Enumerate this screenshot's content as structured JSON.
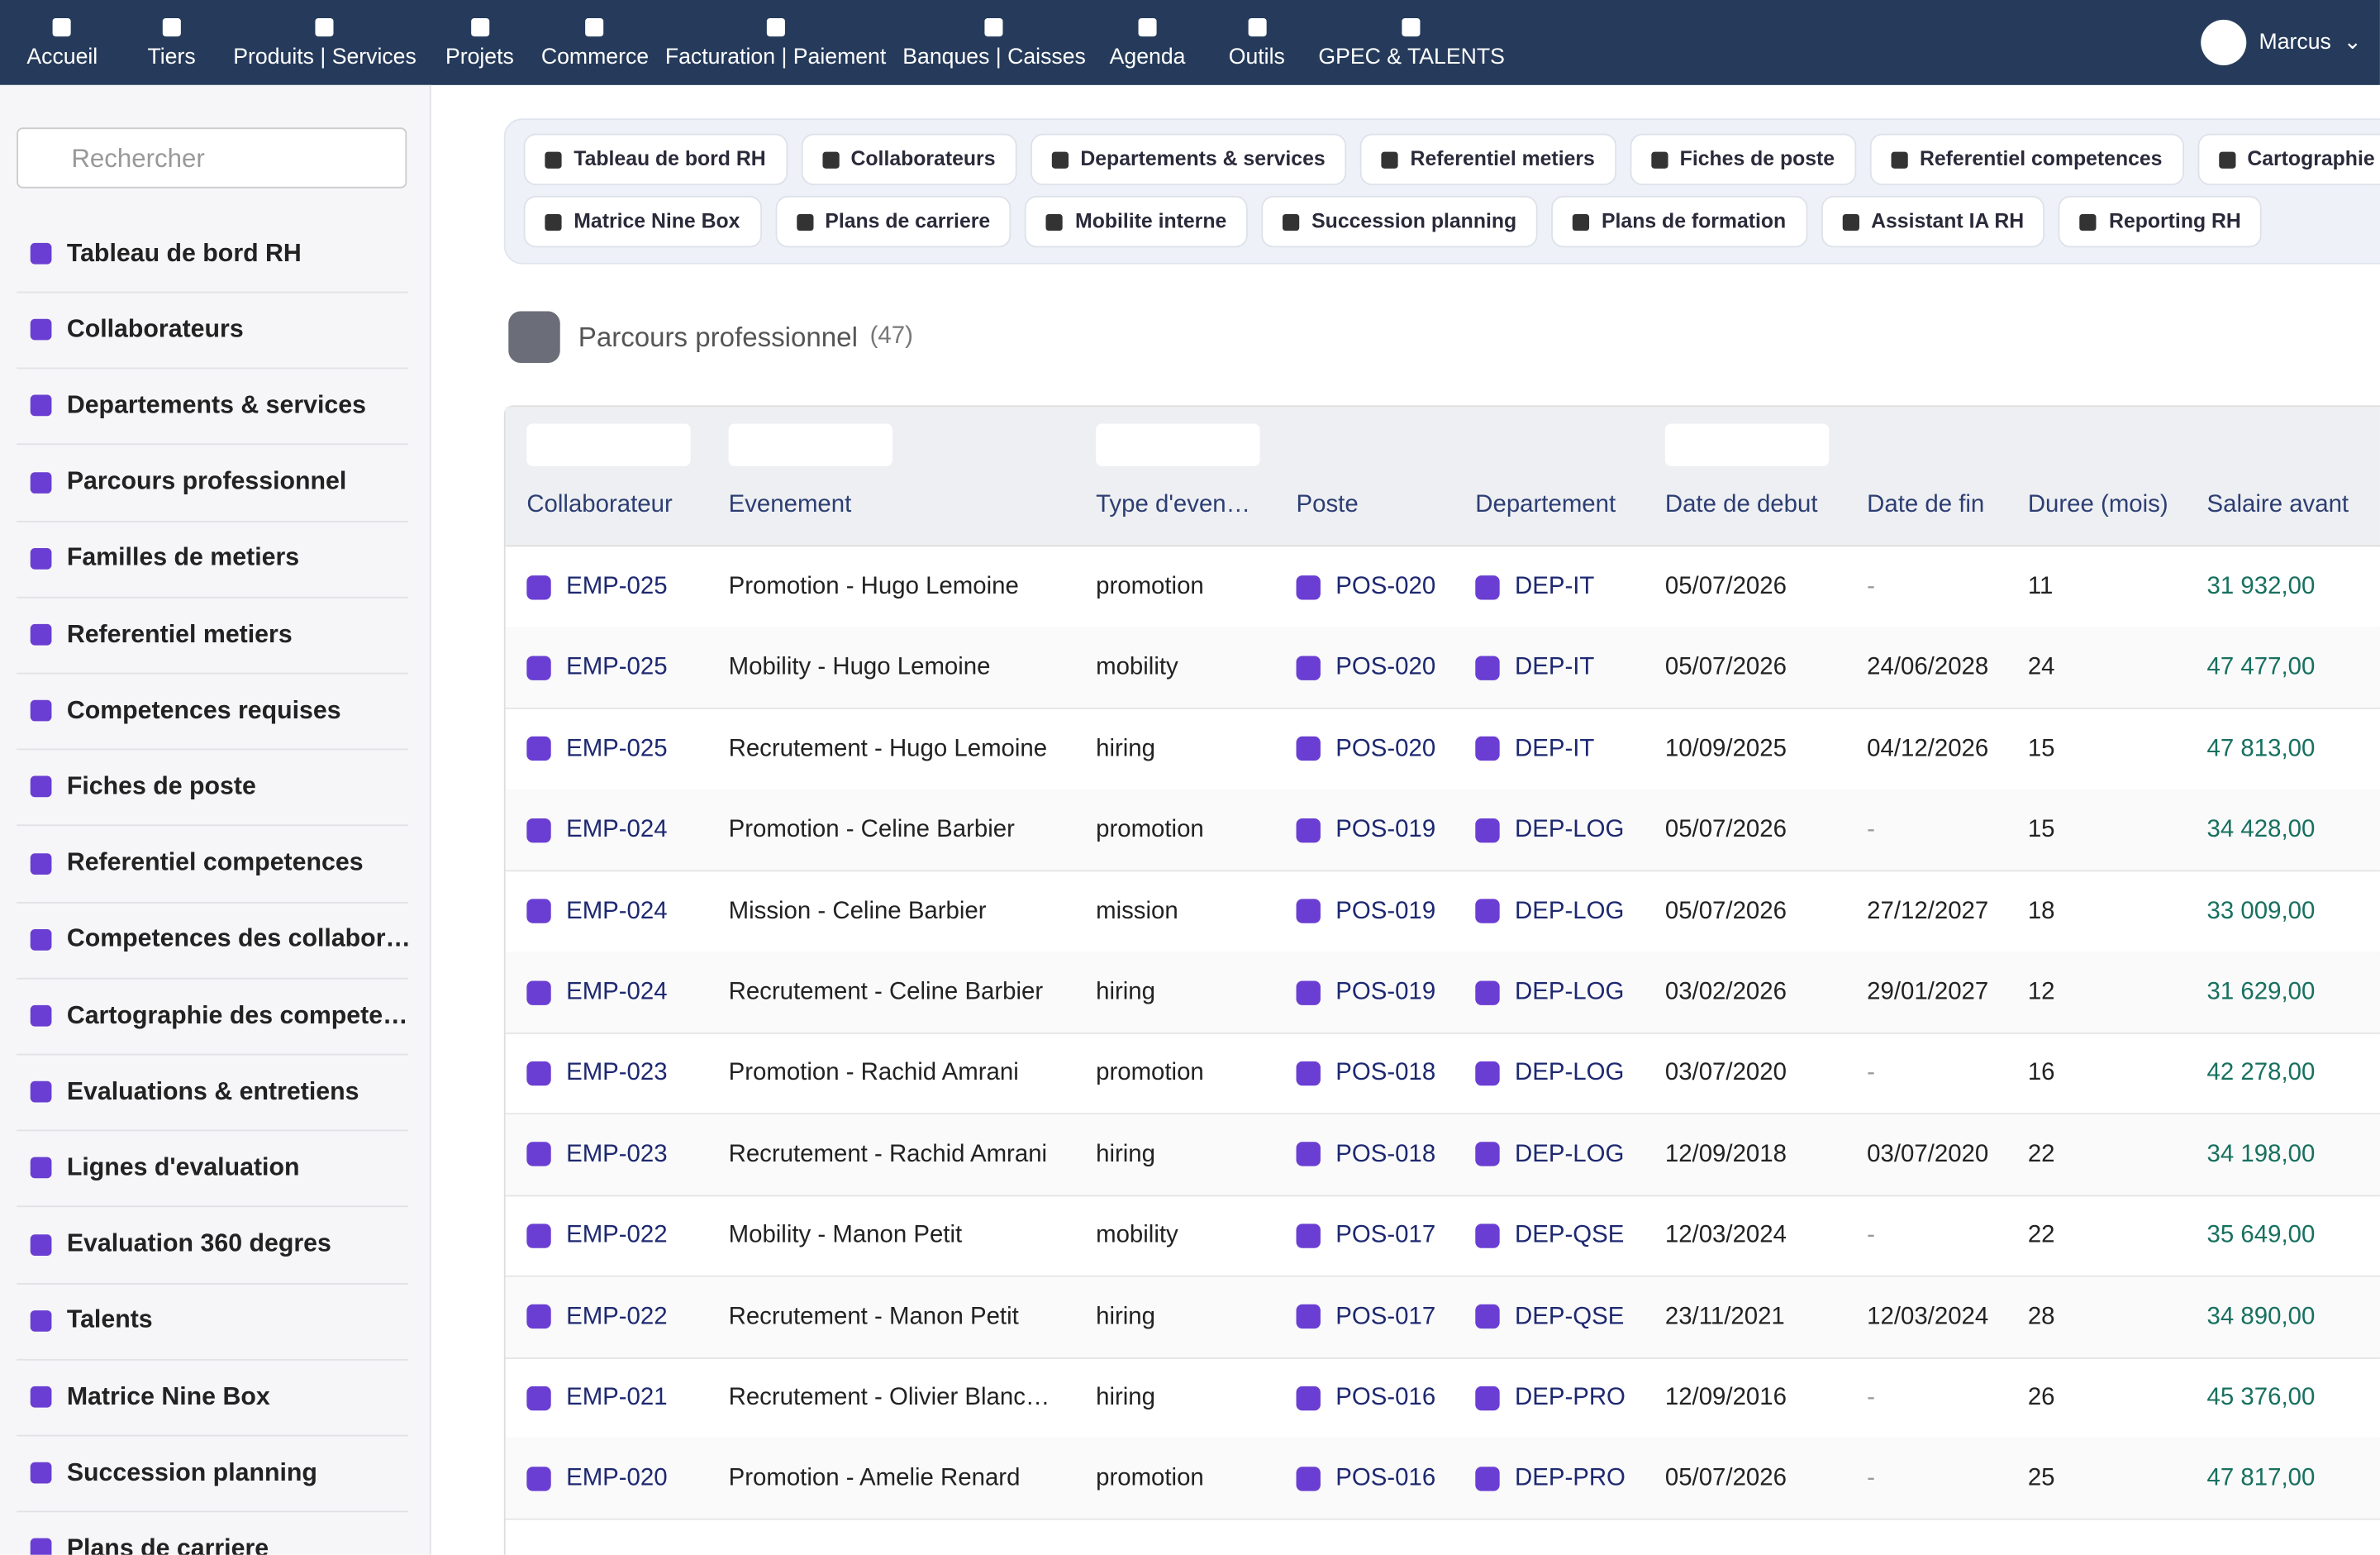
{
  "nav": {
    "items": [
      "Accueil",
      "Tiers",
      "Produits | Services",
      "Projets",
      "Commerce",
      "Facturation | Paiement",
      "Banques | Caisses",
      "Agenda",
      "Outils",
      "GPEC & TALENTS"
    ],
    "user": "Marcus"
  },
  "search": {
    "placeholder": "Rechercher"
  },
  "sidebar": {
    "items": [
      "Tableau de bord RH",
      "Collaborateurs",
      "Departements & services",
      "Parcours professionnel",
      "Familles de metiers",
      "Referentiel metiers",
      "Competences requises",
      "Fiches de poste",
      "Referentiel competences",
      "Competences des collabor…",
      "Cartographie des compete…",
      "Evaluations & entretiens",
      "Lignes d'evaluation",
      "Evaluation 360 degres",
      "Talents",
      "Matrice Nine Box",
      "Succession planning",
      "Plans de carriere"
    ]
  },
  "tabs": {
    "row1": [
      "Tableau de bord RH",
      "Collaborateurs",
      "Departements & services",
      "Referentiel metiers",
      "Fiches de poste",
      "Referentiel competences",
      "Cartographie des competences"
    ],
    "row2": [
      "Matrice Nine Box",
      "Plans de carriere",
      "Mobilite interne",
      "Succession planning",
      "Plans de formation",
      "Assistant IA RH",
      "Reporting RH"
    ]
  },
  "page": {
    "title": "Parcours professionnel",
    "count": "(47)"
  },
  "table": {
    "headers": [
      "Collaborateur",
      "Evenement",
      "Type d'even…",
      "Poste",
      "Departement",
      "Date de debut",
      "Date de fin",
      "Duree (mois)",
      "Salaire avant"
    ],
    "rows": [
      [
        "EMP-025",
        "Promotion - Hugo Lemoine",
        "promotion",
        "POS-020",
        "DEP-IT",
        "05/07/2026",
        "-",
        "11",
        "31 932,00"
      ],
      [
        "EMP-025",
        "Mobility - Hugo Lemoine",
        "mobility",
        "POS-020",
        "DEP-IT",
        "05/07/2026",
        "24/06/2028",
        "24",
        "47 477,00"
      ],
      [
        "EMP-025",
        "Recrutement - Hugo Lemoine",
        "hiring",
        "POS-020",
        "DEP-IT",
        "10/09/2025",
        "04/12/2026",
        "15",
        "47 813,00"
      ],
      [
        "EMP-024",
        "Promotion - Celine Barbier",
        "promotion",
        "POS-019",
        "DEP-LOG",
        "05/07/2026",
        "-",
        "15",
        "34 428,00"
      ],
      [
        "EMP-024",
        "Mission - Celine Barbier",
        "mission",
        "POS-019",
        "DEP-LOG",
        "05/07/2026",
        "27/12/2027",
        "18",
        "33 009,00"
      ],
      [
        "EMP-024",
        "Recrutement - Celine Barbier",
        "hiring",
        "POS-019",
        "DEP-LOG",
        "03/02/2026",
        "29/01/2027",
        "12",
        "31 629,00"
      ],
      [
        "EMP-023",
        "Promotion - Rachid Amrani",
        "promotion",
        "POS-018",
        "DEP-LOG",
        "03/07/2020",
        "-",
        "16",
        "42 278,00"
      ],
      [
        "EMP-023",
        "Recrutement - Rachid Amrani",
        "hiring",
        "POS-018",
        "DEP-LOG",
        "12/09/2018",
        "03/07/2020",
        "22",
        "34 198,00"
      ],
      [
        "EMP-022",
        "Mobility - Manon Petit",
        "mobility",
        "POS-017",
        "DEP-QSE",
        "12/03/2024",
        "-",
        "22",
        "35 649,00"
      ],
      [
        "EMP-022",
        "Recrutement - Manon Petit",
        "hiring",
        "POS-017",
        "DEP-QSE",
        "23/11/2021",
        "12/03/2024",
        "28",
        "34 890,00"
      ],
      [
        "EMP-021",
        "Recrutement - Olivier Blanc…",
        "hiring",
        "POS-016",
        "DEP-PRO",
        "12/09/2016",
        "-",
        "26",
        "45 376,00"
      ],
      [
        "EMP-020",
        "Promotion - Amelie Renard",
        "promotion",
        "POS-016",
        "DEP-PRO",
        "05/07/2026",
        "-",
        "25",
        "47 817,00"
      ]
    ]
  }
}
